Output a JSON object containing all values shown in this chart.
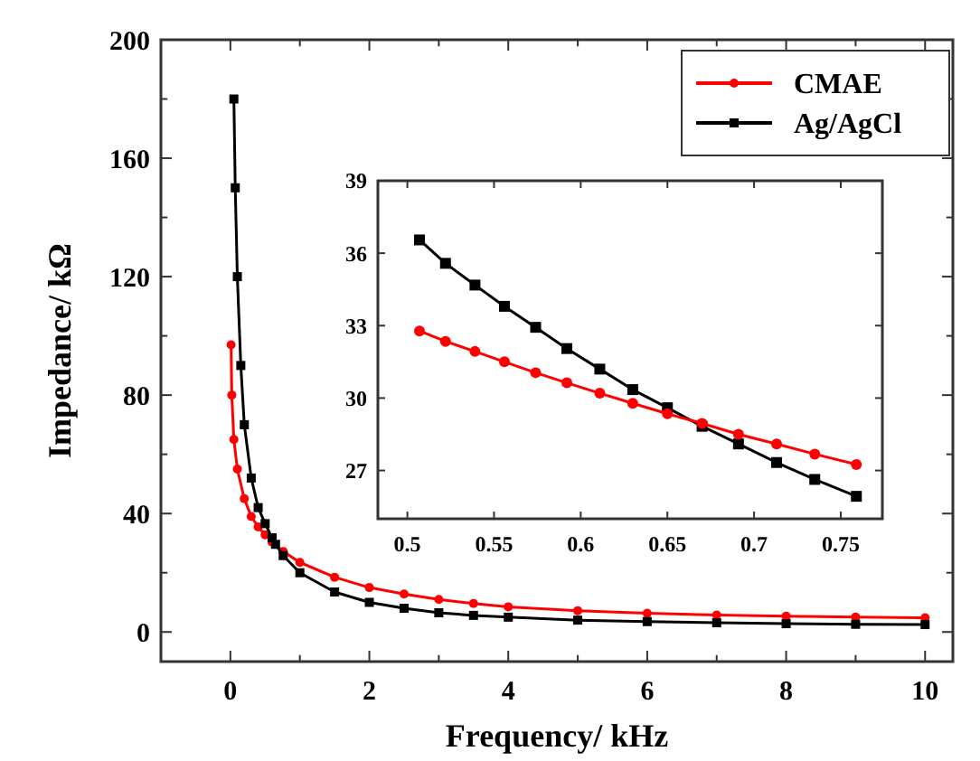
{
  "chart_data": [
    {
      "type": "line",
      "xlabel": "Frequency/ kHz",
      "ylabel": "Impedance/ kΩ",
      "xlim": [
        -1,
        10.4
      ],
      "ylim": [
        -10,
        200
      ],
      "xticks": [
        0,
        {
          "value": 1,
          "label": null
        },
        2,
        {
          "value": 3,
          "label": null
        },
        4,
        {
          "value": 5,
          "label": null
        },
        6,
        {
          "value": 7,
          "label": null
        },
        8,
        {
          "value": 9,
          "label": null
        },
        10
      ],
      "yticks": [
        0,
        {
          "value": 20,
          "label": null
        },
        40,
        {
          "value": 60,
          "label": null
        },
        80,
        {
          "value": 100,
          "label": null
        },
        120,
        {
          "value": 140,
          "label": null
        },
        160,
        {
          "value": 180,
          "label": null
        },
        200
      ],
      "legend": "top right",
      "grid": false,
      "series": [
        {
          "name": "CMAE",
          "color": "#ff0000",
          "marker": "circle",
          "x": [
            0.01,
            0.02,
            0.05,
            0.1,
            0.2,
            0.3,
            0.4,
            0.5,
            0.6,
            0.76,
            1,
            1.5,
            2,
            2.5,
            3,
            3.5,
            4,
            5,
            6,
            7,
            8,
            9,
            10
          ],
          "values": [
            97,
            80,
            65,
            55,
            45,
            39,
            35.5,
            32.8,
            30.4,
            27.2,
            23.5,
            18.5,
            15,
            12.8,
            11,
            9.6,
            8.5,
            7.2,
            6.3,
            5.7,
            5.3,
            5,
            4.8
          ]
        },
        {
          "name": "Ag/AgCl",
          "color": "#000000",
          "marker": "square",
          "x": [
            0.05,
            0.07,
            0.1,
            0.15,
            0.2,
            0.3,
            0.4,
            0.5,
            0.6,
            0.65,
            0.76,
            1,
            1.5,
            2,
            2.5,
            3,
            3.5,
            4,
            5,
            6,
            7,
            8,
            9,
            10
          ],
          "values": [
            180,
            150,
            120,
            90,
            70,
            52,
            42,
            36.6,
            31.8,
            29.6,
            25.8,
            20,
            13.5,
            10,
            8,
            6.5,
            5.6,
            5,
            4,
            3.5,
            3.1,
            2.8,
            2.6,
            2.5
          ]
        }
      ]
    },
    {
      "type": "line",
      "xlim": [
        0.483,
        0.774
      ],
      "ylim": [
        25,
        39
      ],
      "xticks": [
        0.5,
        0.55,
        0.6,
        0.65,
        0.7,
        0.75
      ],
      "yticks": [
        27,
        30,
        33,
        36,
        39
      ],
      "grid": false,
      "series": [
        {
          "color": "#000000",
          "marker": "square",
          "x": [
            0.507,
            0.522,
            0.539,
            0.556,
            0.574,
            0.592,
            0.611,
            0.63,
            0.65,
            0.67,
            0.691,
            0.713,
            0.735,
            0.759
          ],
          "values": [
            36.55,
            35.58,
            34.68,
            33.8,
            32.93,
            32.05,
            31.2,
            30.35,
            29.6,
            28.83,
            28.1,
            27.33,
            26.63,
            25.93
          ]
        },
        {
          "color": "#ff0000",
          "marker": "circle",
          "x": [
            0.507,
            0.522,
            0.539,
            0.556,
            0.574,
            0.592,
            0.611,
            0.63,
            0.65,
            0.67,
            0.691,
            0.713,
            0.735,
            0.759
          ],
          "values": [
            32.78,
            32.35,
            31.93,
            31.5,
            31.05,
            30.63,
            30.2,
            29.78,
            29.35,
            28.95,
            28.5,
            28.1,
            27.68,
            27.25
          ]
        }
      ]
    }
  ]
}
